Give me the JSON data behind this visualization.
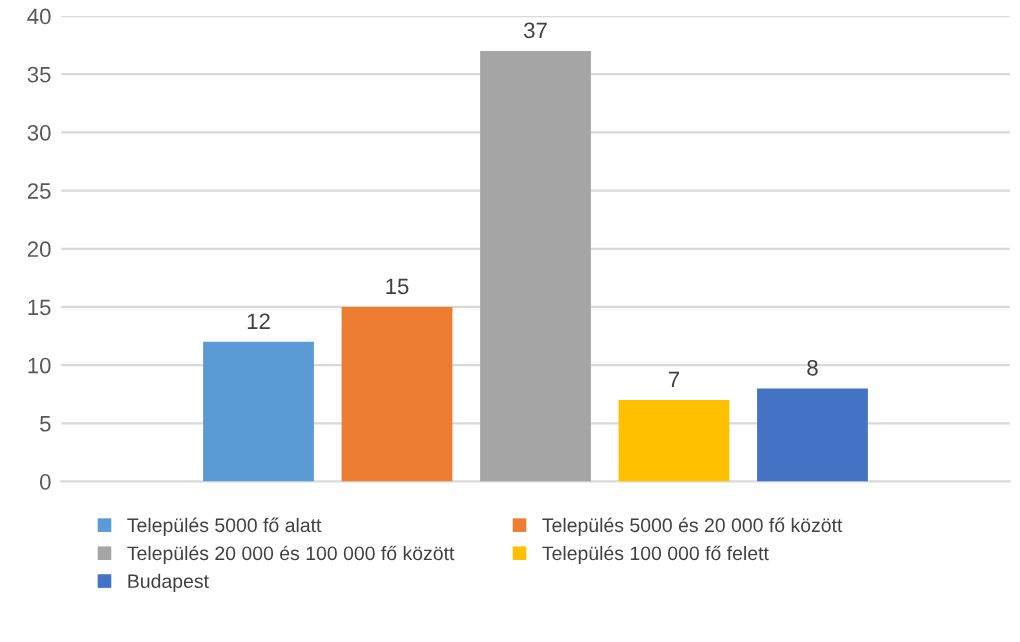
{
  "chart_data": {
    "type": "bar",
    "categories": [
      null
    ],
    "series": [
      {
        "name": "Település 5000 fő alatt",
        "color": "#5b9bd5",
        "values": [
          12
        ]
      },
      {
        "name": "Település 5000 és 20 000 fő között",
        "color": "#ed7d31",
        "values": [
          15
        ]
      },
      {
        "name": "Település 20 000 és 100 000 fő között",
        "color": "#a5a5a5",
        "values": [
          37
        ]
      },
      {
        "name": "Település 100 000 fő felett",
        "color": "#ffc000",
        "values": [
          7
        ]
      },
      {
        "name": "Budapest",
        "color": "#4472c4",
        "values": [
          8
        ]
      }
    ],
    "ylim": [
      0,
      40
    ],
    "yticks": [
      0,
      5,
      10,
      15,
      20,
      25,
      30,
      35,
      40
    ],
    "grid": "y",
    "legend": "bottom",
    "data_labels": true
  }
}
